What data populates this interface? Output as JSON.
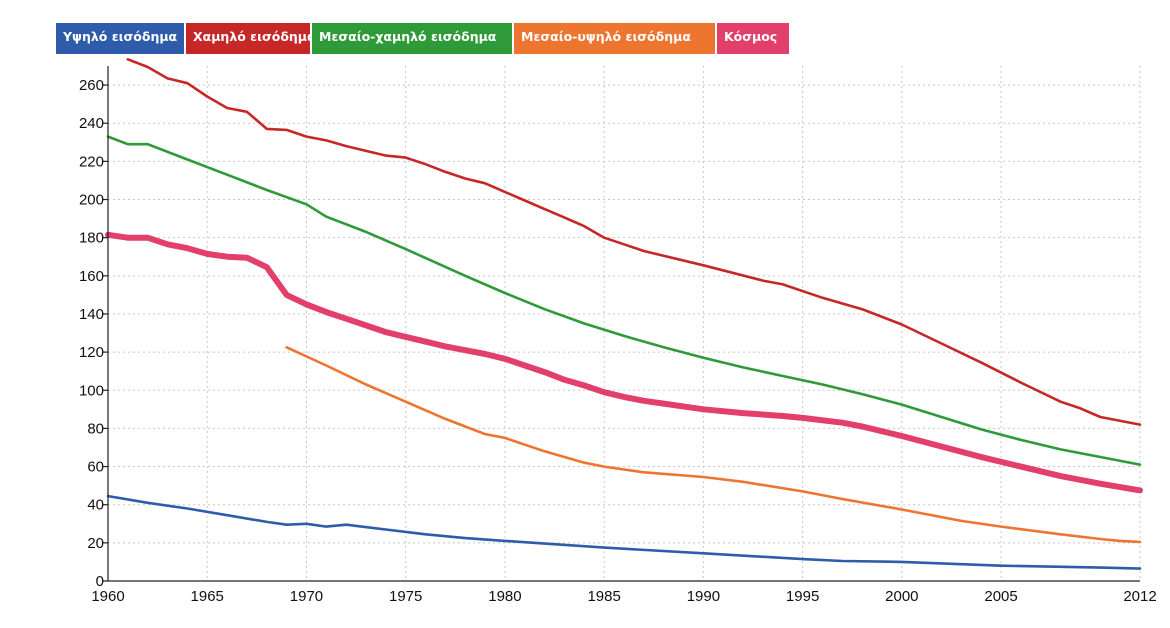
{
  "chart_data": {
    "type": "line",
    "title": "",
    "xlabel": "",
    "ylabel": "",
    "xlim": [
      1960,
      2012
    ],
    "ylim": [
      0,
      270
    ],
    "x_ticks": [
      {
        "value": 1960,
        "label": "1960"
      },
      {
        "value": 1965,
        "label": "1965"
      },
      {
        "value": 1970,
        "label": "1970"
      },
      {
        "value": 1975,
        "label": "1975"
      },
      {
        "value": 1980,
        "label": "1980"
      },
      {
        "value": 1985,
        "label": "1985"
      },
      {
        "value": 1990,
        "label": "1990"
      },
      {
        "value": 1995,
        "label": "1995"
      },
      {
        "value": 2000,
        "label": "2000"
      },
      {
        "value": 2005,
        "label": "2005"
      },
      {
        "value": 2012,
        "label": "2012"
      }
    ],
    "y_ticks": [
      {
        "value": 0,
        "label": "0"
      },
      {
        "value": 20,
        "label": "20"
      },
      {
        "value": 40,
        "label": "40"
      },
      {
        "value": 60,
        "label": "60"
      },
      {
        "value": 80,
        "label": "80"
      },
      {
        "value": 100,
        "label": "100"
      },
      {
        "value": 120,
        "label": "120"
      },
      {
        "value": 140,
        "label": "140"
      },
      {
        "value": 160,
        "label": "160"
      },
      {
        "value": 180,
        "label": "180"
      },
      {
        "value": 200,
        "label": "200"
      },
      {
        "value": 220,
        "label": "220"
      },
      {
        "value": 240,
        "label": "240"
      },
      {
        "value": 260,
        "label": "260"
      }
    ],
    "grid": true,
    "legend_position": "top",
    "series": [
      {
        "name": "Υψηλό εισόδημα",
        "color": "#2e5caa",
        "emphasis": false,
        "points": [
          [
            1960,
            44.5
          ],
          [
            1962,
            41
          ],
          [
            1964,
            38
          ],
          [
            1966,
            34.5
          ],
          [
            1968,
            31
          ],
          [
            1969,
            29.5
          ],
          [
            1970,
            30
          ],
          [
            1971,
            28.5
          ],
          [
            1972,
            29.5
          ],
          [
            1974,
            27
          ],
          [
            1976,
            24.5
          ],
          [
            1978,
            22.5
          ],
          [
            1980,
            21
          ],
          [
            1985,
            17.5
          ],
          [
            1990,
            14.5
          ],
          [
            1995,
            11.5
          ],
          [
            1997,
            10.5
          ],
          [
            2000,
            10
          ],
          [
            2005,
            8
          ],
          [
            2010,
            7
          ],
          [
            2012,
            6.5
          ]
        ]
      },
      {
        "name": "Χαμηλό εισόδημα",
        "color": "#c62828",
        "emphasis": false,
        "points": [
          [
            1961,
            273.5
          ],
          [
            1962,
            269.5
          ],
          [
            1963,
            263.5
          ],
          [
            1964,
            261
          ],
          [
            1965,
            254
          ],
          [
            1966,
            248
          ],
          [
            1967,
            246
          ],
          [
            1968,
            237
          ],
          [
            1969,
            236.5
          ],
          [
            1970,
            233
          ],
          [
            1971,
            231
          ],
          [
            1972,
            228
          ],
          [
            1973,
            225.5
          ],
          [
            1974,
            223
          ],
          [
            1975,
            222
          ],
          [
            1976,
            218.5
          ],
          [
            1977,
            214.5
          ],
          [
            1978,
            211
          ],
          [
            1979,
            208.5
          ],
          [
            1980,
            204
          ],
          [
            1981,
            199.5
          ],
          [
            1982,
            195
          ],
          [
            1983,
            190.5
          ],
          [
            1984,
            186
          ],
          [
            1985,
            180
          ],
          [
            1986,
            176.5
          ],
          [
            1987,
            173
          ],
          [
            1990,
            165.5
          ],
          [
            1993,
            157.5
          ],
          [
            1994,
            155.5
          ],
          [
            1996,
            148.5
          ],
          [
            1998,
            142.5
          ],
          [
            2000,
            134.5
          ],
          [
            2002,
            124.5
          ],
          [
            2004,
            114.5
          ],
          [
            2006,
            104
          ],
          [
            2008,
            94
          ],
          [
            2009,
            90.5
          ],
          [
            2010,
            86
          ],
          [
            2012,
            82
          ]
        ]
      },
      {
        "name": "Μεσαίο-χαμηλό εισόδημα",
        "color": "#2f9a3a",
        "emphasis": false,
        "points": [
          [
            1960,
            233
          ],
          [
            1961,
            229
          ],
          [
            1962,
            229
          ],
          [
            1964,
            221
          ],
          [
            1966,
            213
          ],
          [
            1968,
            205
          ],
          [
            1970,
            197.5
          ],
          [
            1971,
            191
          ],
          [
            1973,
            183
          ],
          [
            1975,
            174
          ],
          [
            1978,
            160
          ],
          [
            1980,
            151
          ],
          [
            1982,
            142.5
          ],
          [
            1984,
            135
          ],
          [
            1986,
            128.5
          ],
          [
            1988,
            122.5
          ],
          [
            1990,
            117
          ],
          [
            1992,
            112
          ],
          [
            1994,
            107.5
          ],
          [
            1996,
            103
          ],
          [
            1998,
            98
          ],
          [
            2000,
            92.5
          ],
          [
            2002,
            86
          ],
          [
            2004,
            79.5
          ],
          [
            2006,
            74
          ],
          [
            2008,
            69
          ],
          [
            2010,
            65
          ],
          [
            2012,
            61
          ]
        ]
      },
      {
        "name": "Μεσαίο-υψηλό εισόδημα",
        "color": "#ee7530",
        "emphasis": false,
        "points": [
          [
            1969,
            122.5
          ],
          [
            1971,
            113
          ],
          [
            1973,
            103
          ],
          [
            1975,
            94
          ],
          [
            1977,
            85
          ],
          [
            1979,
            77
          ],
          [
            1980,
            75
          ],
          [
            1982,
            68
          ],
          [
            1984,
            62
          ],
          [
            1985,
            60
          ],
          [
            1987,
            57
          ],
          [
            1990,
            54.5
          ],
          [
            1992,
            52
          ],
          [
            1995,
            47
          ],
          [
            1997,
            43
          ],
          [
            2000,
            37.5
          ],
          [
            2003,
            31.5
          ],
          [
            2005,
            28.5
          ],
          [
            2008,
            24.5
          ],
          [
            2010,
            22
          ],
          [
            2011,
            21
          ],
          [
            2012,
            20.5
          ]
        ]
      },
      {
        "name": "Κόσμος",
        "color": "#e23f6b",
        "emphasis": true,
        "points": [
          [
            1960,
            181.5
          ],
          [
            1961,
            180
          ],
          [
            1962,
            180
          ],
          [
            1963,
            176.5
          ],
          [
            1964,
            174.5
          ],
          [
            1965,
            171.5
          ],
          [
            1966,
            170
          ],
          [
            1967,
            169.5
          ],
          [
            1968,
            164.5
          ],
          [
            1969,
            150
          ],
          [
            1970,
            145
          ],
          [
            1971,
            141
          ],
          [
            1972,
            137.5
          ],
          [
            1973,
            134
          ],
          [
            1974,
            130.5
          ],
          [
            1975,
            128
          ],
          [
            1976,
            125.5
          ],
          [
            1977,
            123
          ],
          [
            1978,
            121
          ],
          [
            1979,
            119
          ],
          [
            1980,
            116.5
          ],
          [
            1981,
            113
          ],
          [
            1982,
            109.5
          ],
          [
            1983,
            105.5
          ],
          [
            1984,
            102.5
          ],
          [
            1985,
            99
          ],
          [
            1986,
            96.5
          ],
          [
            1987,
            94.5
          ],
          [
            1988,
            93
          ],
          [
            1990,
            90
          ],
          [
            1992,
            88
          ],
          [
            1994,
            86.5
          ],
          [
            1995,
            85.5
          ],
          [
            1997,
            83
          ],
          [
            1998,
            81
          ],
          [
            2000,
            76
          ],
          [
            2002,
            70.5
          ],
          [
            2004,
            65
          ],
          [
            2006,
            60
          ],
          [
            2008,
            55
          ],
          [
            2010,
            51
          ],
          [
            2012,
            47.5
          ]
        ]
      }
    ]
  }
}
